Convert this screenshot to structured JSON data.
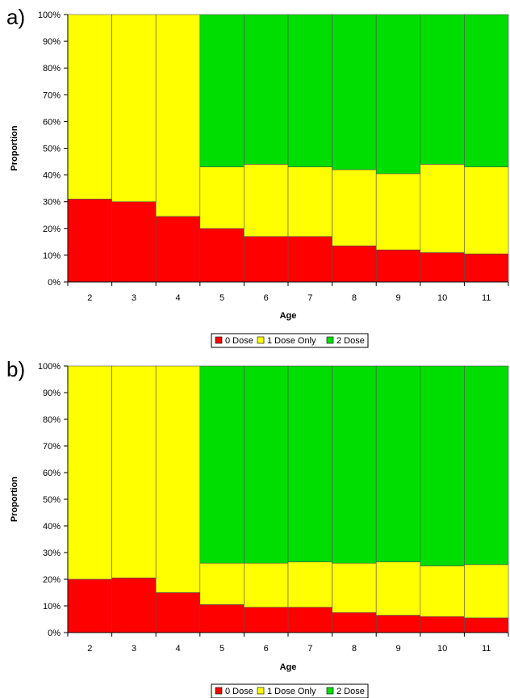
{
  "colors": {
    "dose0": "#ff0000",
    "dose1": "#ffff00",
    "dose2": "#00dd00"
  },
  "chart_data": [
    {
      "type": "bar",
      "stacked": true,
      "panel_label": "a)",
      "xlabel": "Age",
      "ylabel": "Proportion",
      "ylim": [
        0,
        100
      ],
      "y_tick_labels": [
        "0%",
        "10%",
        "20%",
        "30%",
        "40%",
        "50%",
        "60%",
        "70%",
        "80%",
        "90%",
        "100%"
      ],
      "categories": [
        "2",
        "3",
        "4",
        "5",
        "6",
        "7",
        "8",
        "9",
        "10",
        "11"
      ],
      "legend_position": "bottom",
      "series": [
        {
          "name": "0 Dose",
          "color": "#ff0000",
          "values": [
            31,
            30,
            24.5,
            20,
            17,
            17,
            13.5,
            12,
            11,
            10.5
          ]
        },
        {
          "name": "1 Dose Only",
          "color": "#ffff00",
          "values": [
            69,
            70,
            75.5,
            23,
            27,
            26,
            28.5,
            28.5,
            33,
            32.5
          ]
        },
        {
          "name": "2 Dose",
          "color": "#00dd00",
          "values": [
            0,
            0,
            0,
            57,
            56,
            57,
            58,
            59.5,
            56,
            57
          ]
        }
      ]
    },
    {
      "type": "bar",
      "stacked": true,
      "panel_label": "b)",
      "xlabel": "Age",
      "ylabel": "Proportion",
      "ylim": [
        0,
        100
      ],
      "y_tick_labels": [
        "0%",
        "10%",
        "20%",
        "30%",
        "40%",
        "50%",
        "60%",
        "70%",
        "80%",
        "90%",
        "100%"
      ],
      "categories": [
        "2",
        "3",
        "4",
        "5",
        "6",
        "7",
        "8",
        "9",
        "10",
        "11"
      ],
      "legend_position": "bottom",
      "series": [
        {
          "name": "0 Dose",
          "color": "#ff0000",
          "values": [
            20,
            20.5,
            15,
            10.5,
            9.5,
            9.5,
            7.5,
            6.5,
            6,
            5.5
          ]
        },
        {
          "name": "1 Dose Only",
          "color": "#ffff00",
          "values": [
            80,
            79.5,
            85,
            15.5,
            16.5,
            17,
            18.5,
            20,
            19,
            20
          ]
        },
        {
          "name": "2 Dose",
          "color": "#00dd00",
          "values": [
            0,
            0,
            0,
            74,
            74,
            73.5,
            74,
            73.5,
            75,
            74.5
          ]
        }
      ]
    }
  ]
}
